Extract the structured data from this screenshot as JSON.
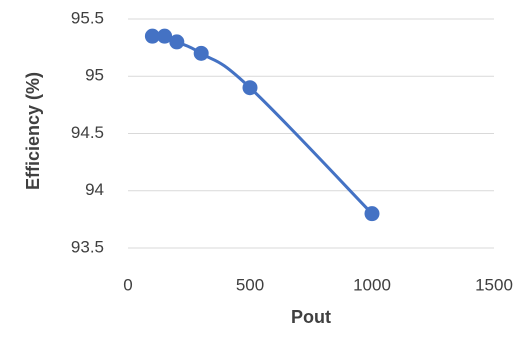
{
  "chart_data": {
    "type": "scatter",
    "title": "",
    "xlabel": "Pout",
    "ylabel": "Efficiency (%)",
    "xlim": [
      0,
      1500
    ],
    "ylim": [
      93.5,
      95.5
    ],
    "x_ticks": [
      0,
      500,
      1000,
      1500
    ],
    "y_ticks": [
      93.5,
      94,
      94.5,
      95,
      95.5
    ],
    "x_tick_labels": [
      "0",
      "500",
      "1000",
      "1500"
    ],
    "y_tick_labels": [
      "93.5",
      "94",
      "94.5",
      "95",
      "95.5"
    ],
    "grid": "horizontal",
    "legend": "none",
    "series": [
      {
        "color": "#4472C4",
        "line": "smooth",
        "marker": "circle",
        "points": [
          {
            "x": 100,
            "y": 95.35
          },
          {
            "x": 150,
            "y": 95.35
          },
          {
            "x": 200,
            "y": 95.3
          },
          {
            "x": 300,
            "y": 95.2
          },
          {
            "x": 500,
            "y": 94.9
          },
          {
            "x": 1000,
            "y": 93.8
          }
        ]
      }
    ]
  }
}
